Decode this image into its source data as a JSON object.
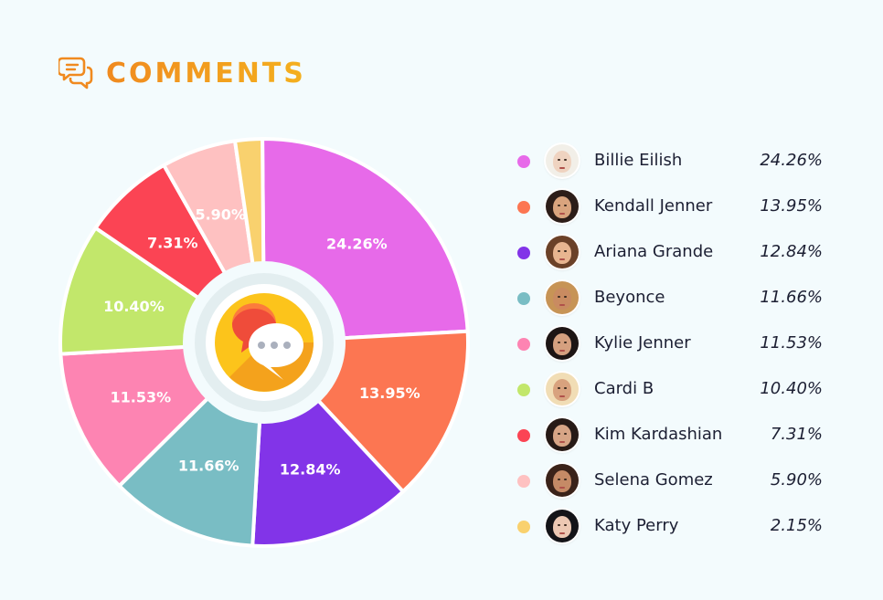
{
  "header": {
    "title": "COMMENTS",
    "icon": "comments-icon",
    "accent": "#f08a1f"
  },
  "chart_data": {
    "type": "pie",
    "categories": [
      "Billie Eilish",
      "Kendall Jenner",
      "Ariana Grande",
      "Beyonce",
      "Kylie Jenner",
      "Cardi B",
      "Kim Kardashian",
      "Selena Gomez",
      "Katy Perry"
    ],
    "values": [
      24.26,
      13.95,
      12.84,
      11.66,
      11.53,
      10.4,
      7.31,
      5.9,
      2.15
    ],
    "labels": [
      "24.26%",
      "13.95%",
      "12.84%",
      "11.66%",
      "11.53%",
      "10.40%",
      "7.31%",
      "5.90%",
      "2.15%"
    ],
    "slice_labels_shown": [
      true,
      true,
      true,
      true,
      true,
      true,
      true,
      true,
      false
    ],
    "colors": [
      "#e76ae9",
      "#fc7652",
      "#8234e8",
      "#79bdc4",
      "#fd84b2",
      "#c2e76b",
      "#fb4454",
      "#fec1c1",
      "#f9d16e"
    ],
    "legend_position": "right",
    "center_icon": "chat-bubbles-icon"
  },
  "legend": {
    "items": [
      {
        "name": "Billie Eilish",
        "pct": "24.26%",
        "color": "#e76ae9",
        "avatar": "billie-eilish-avatar",
        "hair": "#f2efe8",
        "skin": "#efd3c0"
      },
      {
        "name": "Kendall Jenner",
        "pct": "13.95%",
        "color": "#fc7652",
        "avatar": "kendall-jenner-avatar",
        "hair": "#2c1d18",
        "skin": "#d9a47e"
      },
      {
        "name": "Ariana Grande",
        "pct": "12.84%",
        "color": "#8234e8",
        "avatar": "ariana-grande-avatar",
        "hair": "#6b4128",
        "skin": "#e8b590"
      },
      {
        "name": "Beyonce",
        "pct": "11.66%",
        "color": "#79bdc4",
        "avatar": "beyonce-avatar",
        "hair": "#c79456",
        "skin": "#c98b61"
      },
      {
        "name": "Kylie Jenner",
        "pct": "11.53%",
        "color": "#fd84b2",
        "avatar": "kylie-jenner-avatar",
        "hair": "#1d1514",
        "skin": "#d5a07f"
      },
      {
        "name": "Cardi B",
        "pct": "10.40%",
        "color": "#c2e76b",
        "avatar": "cardi-b-avatar",
        "hair": "#f1ddb5",
        "skin": "#d8a27e"
      },
      {
        "name": "Kim Kardashian",
        "pct": "7.31%",
        "color": "#fb4454",
        "avatar": "kim-kardashian-avatar",
        "hair": "#271a16",
        "skin": "#d7a586"
      },
      {
        "name": "Selena Gomez",
        "pct": "5.90%",
        "color": "#fec1c1",
        "avatar": "selena-gomez-avatar",
        "hair": "#3a2219",
        "skin": "#c58a66"
      },
      {
        "name": "Katy Perry",
        "pct": "2.15%",
        "color": "#f9d16e",
        "avatar": "katy-perry-avatar",
        "hair": "#141418",
        "skin": "#ecc8b3"
      }
    ]
  }
}
